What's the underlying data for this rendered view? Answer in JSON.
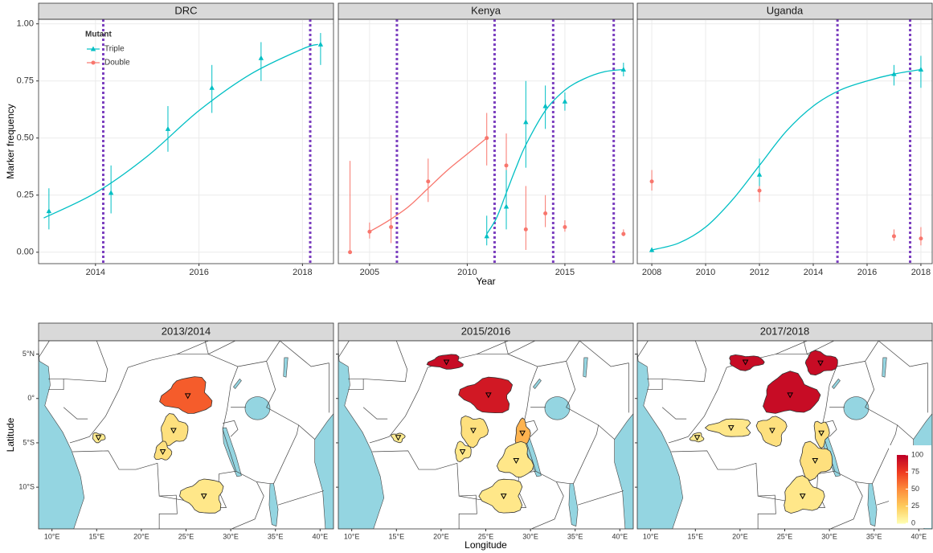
{
  "chart_data": [
    {
      "type": "errorbar",
      "title": "DRC",
      "ylabel": "Marker frequency",
      "xlim": [
        2012.9,
        2018.6
      ],
      "xticks": [
        2014,
        2016,
        2018
      ],
      "ylim": [
        -0.05,
        1.02
      ],
      "yticks": [
        {
          "value": 0,
          "label": "0.00"
        },
        {
          "value": 0.25,
          "label": "0.25"
        },
        {
          "value": 0.5,
          "label": "0.50"
        },
        {
          "value": 0.75,
          "label": "0.75"
        },
        {
          "value": 1,
          "label": "1.00"
        }
      ],
      "grid": true,
      "legend_title": "Mutant",
      "vline_color": "#7b3fbf",
      "vlines": [
        2014.15,
        2018.15
      ],
      "series": [
        {
          "name": "Triple",
          "color": "#00bfc4",
          "marker": "triangle",
          "x": [
            2013.1,
            2014.3,
            2015.4,
            2016.25,
            2017.2,
            2018.35
          ],
          "values": [
            0.18,
            0.26,
            0.54,
            0.72,
            0.85,
            0.91
          ],
          "lower": [
            0.1,
            0.17,
            0.44,
            0.61,
            0.75,
            0.82
          ],
          "upper": [
            0.28,
            0.38,
            0.64,
            0.82,
            0.92,
            0.96
          ],
          "fit_x": [
            2013,
            2014,
            2015,
            2016,
            2017,
            2018,
            2018.3
          ],
          "fit_values": [
            0.15,
            0.26,
            0.42,
            0.62,
            0.78,
            0.89,
            0.91
          ]
        }
      ]
    },
    {
      "type": "errorbar",
      "title": "Kenya",
      "xlabel": "Year",
      "xlim": [
        2003.4,
        2018.5
      ],
      "xticks": [
        2005,
        2010,
        2015
      ],
      "ylim": [
        -0.05,
        1.02
      ],
      "yticks": [
        {
          "value": 0,
          "label": "0.00"
        },
        {
          "value": 0.25,
          "label": "0.25"
        },
        {
          "value": 0.5,
          "label": "0.50"
        },
        {
          "value": 0.75,
          "label": "0.75"
        },
        {
          "value": 1,
          "label": "1.00"
        }
      ],
      "grid": true,
      "vline_color": "#7b3fbf",
      "vlines": [
        2006.4,
        2011.4,
        2014.4,
        2017.5
      ],
      "series": [
        {
          "name": "Double",
          "color": "#f8766d",
          "marker": "circle",
          "x": [
            2004,
            2005,
            2006.1,
            2008,
            2011,
            2012,
            2013,
            2014,
            2015,
            2018
          ],
          "values": [
            0.0,
            0.09,
            0.11,
            0.31,
            0.5,
            0.38,
            0.1,
            0.17,
            0.11,
            0.08
          ],
          "lower": [
            0.0,
            0.06,
            0.04,
            0.22,
            0.38,
            0.19,
            0.01,
            0.11,
            0.09,
            0.07
          ],
          "upper": [
            0.4,
            0.13,
            0.25,
            0.41,
            0.61,
            0.52,
            0.29,
            0.25,
            0.14,
            0.1
          ],
          "fit_x": [
            2005,
            2006,
            2007,
            2008,
            2009,
            2010,
            2011
          ],
          "fit_values": [
            0.09,
            0.14,
            0.2,
            0.28,
            0.36,
            0.43,
            0.5
          ]
        },
        {
          "name": "Triple",
          "color": "#00bfc4",
          "marker": "triangle",
          "x": [
            2011,
            2012,
            2013,
            2014,
            2015,
            2018
          ],
          "values": [
            0.07,
            0.2,
            0.57,
            0.64,
            0.66,
            0.8
          ],
          "lower": [
            0.03,
            0.1,
            0.37,
            0.54,
            0.62,
            0.77
          ],
          "upper": [
            0.16,
            0.36,
            0.75,
            0.73,
            0.7,
            0.83
          ],
          "fit_x": [
            2011,
            2011.5,
            2012,
            2012.5,
            2013,
            2014,
            2015,
            2016,
            2017,
            2018
          ],
          "fit_values": [
            0.08,
            0.15,
            0.26,
            0.37,
            0.47,
            0.62,
            0.71,
            0.76,
            0.79,
            0.8
          ]
        }
      ]
    },
    {
      "type": "errorbar",
      "title": "Uganda",
      "xlim": [
        2007.46,
        2018.42
      ],
      "xticks": [
        2008,
        2010,
        2012,
        2014,
        2016,
        2018
      ],
      "ylim": [
        -0.05,
        1.02
      ],
      "yticks": [
        {
          "value": 0,
          "label": "0.00"
        },
        {
          "value": 0.25,
          "label": "0.25"
        },
        {
          "value": 0.5,
          "label": "0.50"
        },
        {
          "value": 0.75,
          "label": "0.75"
        },
        {
          "value": 1,
          "label": "1.00"
        }
      ],
      "grid": true,
      "vline_color": "#7b3fbf",
      "vlines": [
        2014.9,
        2017.6
      ],
      "series": [
        {
          "name": "Double",
          "color": "#f8766d",
          "marker": "circle",
          "x": [
            2008,
            2012,
            2017,
            2018
          ],
          "values": [
            0.31,
            0.27,
            0.07,
            0.06
          ],
          "lower": [
            0.27,
            0.22,
            0.05,
            0.03
          ],
          "upper": [
            0.36,
            0.32,
            0.1,
            0.11
          ]
        },
        {
          "name": "Triple",
          "color": "#00bfc4",
          "marker": "triangle",
          "x": [
            2008,
            2012,
            2017,
            2018
          ],
          "values": [
            0.01,
            0.34,
            0.78,
            0.8
          ],
          "lower": [
            0.0,
            0.29,
            0.73,
            0.72
          ],
          "upper": [
            0.02,
            0.41,
            0.82,
            0.86
          ],
          "fit_x": [
            2008,
            2009,
            2010,
            2011,
            2012,
            2013,
            2014,
            2015,
            2016,
            2017,
            2018
          ],
          "fit_values": [
            0.01,
            0.04,
            0.11,
            0.23,
            0.38,
            0.53,
            0.64,
            0.71,
            0.75,
            0.78,
            0.8
          ]
        }
      ]
    },
    {
      "type": "map",
      "title": "2013/2014",
      "ylabel": "Latitude",
      "xlim": [
        8.5,
        41.5
      ],
      "xticks": [
        {
          "value": 10,
          "label": "10°E"
        },
        {
          "value": 15,
          "label": "15°E"
        },
        {
          "value": 20,
          "label": "20°E"
        },
        {
          "value": 25,
          "label": "25°E"
        },
        {
          "value": 30,
          "label": "30°E"
        },
        {
          "value": 35,
          "label": "35°E"
        },
        {
          "value": 40,
          "label": "40°E"
        }
      ],
      "ylim": [
        -14.7,
        6.5
      ],
      "yticks": [
        {
          "value": 5,
          "label": "5°N"
        },
        {
          "value": 0,
          "label": "0°"
        },
        {
          "value": -5,
          "label": "5°S"
        },
        {
          "value": -10,
          "label": "10°S"
        }
      ],
      "colorscale": [
        "#ffffb2",
        "#fecc5c",
        "#fd8d3c",
        "#f03b20",
        "#bd0026"
      ],
      "colorlim": [
        0,
        100
      ],
      "values": [
        10,
        15,
        15,
        65,
        12
      ]
    },
    {
      "type": "map",
      "title": "2015/2016",
      "xlabel": "Longitude",
      "xlim": [
        8.5,
        41.5
      ],
      "xticks": [
        {
          "value": 10,
          "label": "10°E"
        },
        {
          "value": 15,
          "label": "15°E"
        },
        {
          "value": 20,
          "label": "20°E"
        },
        {
          "value": 25,
          "label": "25°E"
        },
        {
          "value": 30,
          "label": "30°E"
        },
        {
          "value": 35,
          "label": "35°E"
        },
        {
          "value": 40,
          "label": "40°E"
        }
      ],
      "ylim": [
        -14.7,
        6.5
      ],
      "yticks": [
        {
          "value": 5,
          "label": "5°N"
        },
        {
          "value": 0,
          "label": "0°"
        },
        {
          "value": -5,
          "label": "5°S"
        },
        {
          "value": -10,
          "label": "10°S"
        }
      ],
      "colorscale": [
        "#ffffb2",
        "#fecc5c",
        "#fd8d3c",
        "#f03b20",
        "#bd0026"
      ],
      "colorlim": [
        0,
        100
      ],
      "values": [
        95,
        90,
        10,
        15,
        12,
        35,
        12,
        12
      ]
    },
    {
      "type": "map",
      "title": "2017/2018",
      "xlim": [
        8.5,
        41.5
      ],
      "xticks": [
        {
          "value": 10,
          "label": "10°E"
        },
        {
          "value": 15,
          "label": "15°E"
        },
        {
          "value": 20,
          "label": "20°E"
        },
        {
          "value": 25,
          "label": "25°E"
        },
        {
          "value": 30,
          "label": "30°E"
        },
        {
          "value": 35,
          "label": "35°E"
        },
        {
          "value": 40,
          "label": "40°E"
        }
      ],
      "ylim": [
        -14.7,
        6.5
      ],
      "yticks": [
        {
          "value": 5,
          "label": "5°N"
        },
        {
          "value": 0,
          "label": "0°"
        },
        {
          "value": -5,
          "label": "5°S"
        },
        {
          "value": -10,
          "label": "10°S"
        }
      ],
      "colorscale": [
        "#ffffb2",
        "#fecc5c",
        "#fd8d3c",
        "#f03b20",
        "#bd0026"
      ],
      "colorlim": [
        0,
        100
      ],
      "colorbar_ticks": [
        0,
        25,
        50,
        75,
        100
      ],
      "values": [
        95,
        95,
        95,
        10,
        12,
        15,
        15,
        15,
        12
      ]
    }
  ]
}
